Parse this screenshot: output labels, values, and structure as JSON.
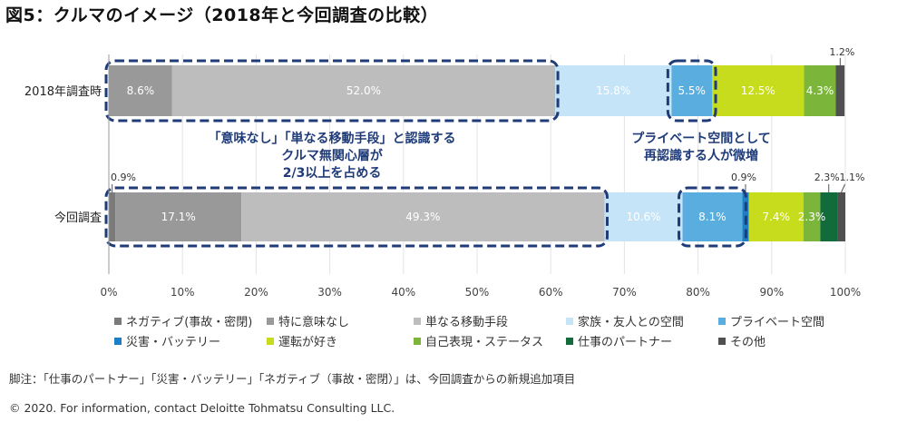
{
  "title": "図5：クルマのイメージ（2018年と今回調査の比較）",
  "chart_data": {
    "type": "bar",
    "orientation": "horizontal-stacked-100",
    "categories": [
      "2018年調査時",
      "今回調査"
    ],
    "series": [
      {
        "name": "ネガティブ(事故・密閉)",
        "values": [
          0,
          0.9
        ],
        "color": "#7a7a7a"
      },
      {
        "name": "特に意味なし",
        "values": [
          8.6,
          17.1
        ],
        "color": "#999999"
      },
      {
        "name": "単なる移動手段",
        "values": [
          52.0,
          49.3
        ],
        "color": "#bdbdbd"
      },
      {
        "name": "家族・友人との空間",
        "values": [
          15.8,
          10.6
        ],
        "color": "#c5e4f7"
      },
      {
        "name": "プライベート空間",
        "values": [
          5.5,
          8.1
        ],
        "color": "#5aaedf"
      },
      {
        "name": "災害・バッテリー",
        "values": [
          0,
          0.9
        ],
        "color": "#1f7fc6"
      },
      {
        "name": "運転が好き",
        "values": [
          12.5,
          7.4
        ],
        "color": "#c8dc1e"
      },
      {
        "name": "自己表現・ステータス",
        "values": [
          4.3,
          2.3
        ],
        "color": "#7bb53a"
      },
      {
        "name": "仕事のパートナー",
        "values": [
          0,
          2.3
        ],
        "color": "#126b3a"
      },
      {
        "name": "その他",
        "values": [
          1.2,
          1.1
        ],
        "color": "#505050"
      }
    ],
    "bar_labels": [
      [
        "",
        "8.6%",
        "52.0%",
        "15.8%",
        "5.5%",
        "",
        "12.5%",
        "4.3%",
        "",
        ""
      ],
      [
        "",
        "17.1%",
        "49.3%",
        "10.6%",
        "8.1%",
        "",
        "7.4%",
        "2.3%",
        "",
        ""
      ]
    ],
    "outside_labels": {
      "row0_other": "1.2%",
      "row1_negative": "0.9%",
      "row1_disaster": "0.9%",
      "row1_work": "2.3%",
      "row1_other": "1.1%"
    },
    "xlim": [
      0,
      100
    ],
    "xticks": [
      "0%",
      "10%",
      "20%",
      "30%",
      "40%",
      "50%",
      "60%",
      "70%",
      "80%",
      "90%",
      "100%"
    ],
    "grid": true,
    "legend_position": "bottom",
    "annotations": {
      "left_lines": [
        "「意味なし」「単なる移動手段」と認識する",
        "クルマ無関心層が",
        "2/3以上を占める"
      ],
      "right_lines": [
        "プライベート空間として",
        "再認識する人が微増"
      ],
      "color": "#1f3b78"
    }
  },
  "legend_items": [
    "ネガティブ(事故・密閉)",
    "特に意味なし",
    "単なる移動手段",
    "家族・友人との空間",
    "プライベート空間",
    "災害・バッテリー",
    "運転が好き",
    "自己表現・ステータス",
    "仕事のパートナー",
    "その他"
  ],
  "footnote": "脚注：「仕事のパートナー」「災害・バッテリー」「ネガティブ（事故・密閉）」は、今回調査からの新規追加項目",
  "copyright": "© 2020. For information, contact Deloitte Tohmatsu Consulting LLC."
}
